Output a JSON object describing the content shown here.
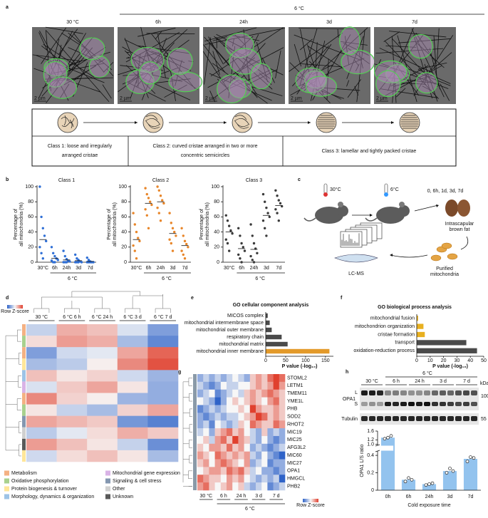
{
  "panel_labels": [
    "a",
    "b",
    "c",
    "d",
    "e",
    "f",
    "g",
    "h"
  ],
  "panel_a": {
    "group_label": "6 °C",
    "conditions": [
      "30 °C",
      "6h",
      "24h",
      "3d",
      "7d"
    ],
    "scale_bar": "2 µm",
    "classes": [
      [
        "Class 1: loose and irregularly",
        "arranged cristae"
      ],
      [
        "Class 2: curved cristae arranged in two or more",
        "concentric semicircles"
      ],
      [
        "Class 3: lamellar and tightly packed cristae"
      ]
    ]
  },
  "panel_c": {
    "temp_start": "30°C",
    "temp_cold": "6°C",
    "timepoints": "0, 6h, 1d, 3d, 7d",
    "tissue": [
      "Intrascapular",
      "brown fat"
    ],
    "mitochondria": [
      "Purified",
      "mitochondria"
    ],
    "method": "LC-MS"
  },
  "panel_h_blot": {
    "control_group": "30 °C",
    "cold_group": "6 °C",
    "lanes": [
      "6 h",
      "24 h",
      "3 d",
      "7 d"
    ],
    "unit": "kDa",
    "protein": "OPA1",
    "long_form": "L",
    "short_form": "S",
    "protein_mw": "100",
    "loading": "Tubulin",
    "loading_mw": "55"
  },
  "chart_data": [
    {
      "type": "strip",
      "title": "Class 1",
      "ylabel": [
        "Percentage of",
        "all mitochondria (%)"
      ],
      "color": "#2f6fd6",
      "categories": [
        "30°C",
        "6h",
        "24h",
        "3d",
        "7d"
      ],
      "group_label": "6 °C",
      "points": [
        [
          100,
          60,
          45,
          35,
          28,
          20,
          12,
          5
        ],
        [
          20,
          12,
          8,
          5,
          3,
          2,
          0,
          0
        ],
        [
          15,
          8,
          4,
          2,
          1,
          0,
          0,
          0
        ],
        [
          10,
          5,
          3,
          1,
          0,
          0,
          0,
          0
        ],
        [
          6,
          3,
          1,
          0,
          0,
          0,
          0,
          0
        ]
      ],
      "means": [
        30,
        5,
        3,
        2,
        1
      ],
      "ylim": [
        0,
        100
      ],
      "yticks": [
        0,
        20,
        40,
        60,
        80,
        100
      ]
    },
    {
      "type": "strip",
      "title": "Class 2",
      "ylabel": [
        "Percentage of",
        "all mitochondria (%)"
      ],
      "color": "#e8862a",
      "categories": [
        "30°C",
        "6h",
        "24h",
        "3d",
        "7d"
      ],
      "group_label": "6 °C",
      "points": [
        [
          65,
          50,
          40,
          32,
          28,
          22,
          15,
          5
        ],
        [
          98,
          90,
          85,
          80,
          76,
          70,
          62,
          45
        ],
        [
          100,
          95,
          88,
          82,
          78,
          72,
          65,
          55
        ],
        [
          65,
          52,
          45,
          40,
          35,
          30,
          25,
          15
        ],
        [
          45,
          35,
          28,
          24,
          20,
          15,
          10,
          5
        ]
      ],
      "means": [
        30,
        78,
        80,
        38,
        22
      ],
      "ylim": [
        0,
        100
      ],
      "yticks": [
        0,
        20,
        40,
        60,
        80,
        100
      ]
    },
    {
      "type": "strip",
      "title": "Class 3",
      "ylabel": [
        "Percentage of",
        "all mitochondria (%)"
      ],
      "color": "#3a3a3a",
      "categories": [
        "30°C",
        "6h",
        "24h",
        "3d",
        "7d"
      ],
      "group_label": "6 °C",
      "points": [
        [
          62,
          55,
          48,
          42,
          38,
          30,
          25,
          15
        ],
        [
          45,
          35,
          25,
          20,
          15,
          10,
          5,
          0
        ],
        [
          50,
          35,
          25,
          18,
          12,
          8,
          3,
          0
        ],
        [
          90,
          80,
          72,
          65,
          60,
          55,
          45,
          35
        ],
        [
          95,
          88,
          82,
          78,
          74,
          70,
          65,
          55
        ]
      ],
      "means": [
        40,
        18,
        17,
        62,
        75
      ],
      "ylim": [
        0,
        100
      ],
      "yticks": [
        0,
        20,
        40,
        60,
        80,
        100
      ]
    },
    {
      "type": "bar",
      "orientation": "horizontal",
      "title": "GO cellular component analysis",
      "xlabel": "P value (-log₁₀)",
      "categories": [
        "MICOS complex",
        "mitochondrial intermembrane space",
        "mitochondrial outer membrane",
        "respiratory chain",
        "mitochondrial matrix",
        "mitochondrial inner membrane"
      ],
      "values": [
        5,
        10,
        15,
        40,
        55,
        160
      ],
      "colors": [
        "#4a4a4a",
        "#4a4a4a",
        "#4a4a4a",
        "#4a4a4a",
        "#4a4a4a",
        "#e39a2a"
      ],
      "xlim": [
        0,
        170
      ],
      "xticks": [
        0,
        50,
        100,
        150
      ]
    },
    {
      "type": "bar",
      "orientation": "horizontal",
      "title": "GO biological process analysis",
      "xlabel": "P value (-log₁₀)",
      "categories": [
        "mitochondrial fusion",
        "mitochondrion organization",
        "cristae formation",
        "transport",
        "oxidation-reduction process"
      ],
      "values": [
        1,
        5,
        6,
        37,
        45
      ],
      "colors": [
        "#e8b020",
        "#e8b020",
        "#e8b020",
        "#4a4a4a",
        "#4a4a4a"
      ],
      "xlim": [
        0,
        50
      ],
      "xticks": [
        0,
        10,
        20,
        30,
        40,
        50
      ]
    },
    {
      "type": "heatmap",
      "rows": [
        "STOML2",
        "LETM1",
        "TMEM11",
        "YME1L",
        "PHB",
        "SOD2",
        "RHOT2",
        "MIC19",
        "MIC25",
        "AFG3L2",
        "MIC60",
        "MIC27",
        "OPA1",
        "HMGCL",
        "PHB2"
      ],
      "label_colors": [
        "#111",
        "#111",
        "#111",
        "#111",
        "#111",
        "#111",
        "#111",
        "#111",
        "#111",
        "#111",
        "#111",
        "#111",
        "#d42020",
        "#111",
        "#111"
      ],
      "groups": [
        "30 °C",
        "6 h",
        "24 h",
        "3 d",
        "7 d"
      ],
      "group_label": "6 °C",
      "scale_label": "Row Z-score",
      "zlim": [
        -2,
        2
      ],
      "colors": [
        "#2f63c8",
        "#f7f7f7",
        "#e0402e"
      ],
      "values": [
        [
          -1,
          -0.5,
          -1,
          -0.5,
          -1,
          -0.5,
          0,
          -0.5,
          -1,
          0.5,
          1,
          0.5,
          1.5,
          2,
          1.5
        ],
        [
          -0.5,
          -1,
          -1.5,
          -1,
          0,
          -0.5,
          -0.5,
          0,
          0,
          0.5,
          1,
          0.5,
          1,
          2,
          1
        ],
        [
          -1,
          -0.5,
          0,
          -1.5,
          -1,
          -0.5,
          0,
          -0.5,
          0.5,
          1,
          0.5,
          1,
          1.5,
          1,
          0.5
        ],
        [
          0,
          -0.5,
          -1,
          -2,
          -1,
          0,
          0.5,
          0,
          0.5,
          1,
          0.5,
          0,
          1,
          1.5,
          0.5
        ],
        [
          -1.5,
          -1,
          -0.5,
          -1,
          -0.5,
          0,
          0,
          0.5,
          0,
          2,
          1,
          0.5,
          0.5,
          1,
          0.5
        ],
        [
          -1,
          -1.5,
          -1,
          -0.5,
          -1,
          -0.5,
          -0.5,
          0,
          0.5,
          1,
          2,
          1.5,
          0.5,
          1,
          0.5
        ],
        [
          -1,
          -0.5,
          -1.5,
          0,
          -0.5,
          -1,
          -0.5,
          0.5,
          0,
          1.5,
          1,
          0.5,
          0.5,
          1.5,
          1
        ],
        [
          -0.5,
          0,
          -1,
          0.5,
          1,
          1.5,
          0.5,
          1,
          0,
          -0.5,
          -1,
          0.5,
          -1,
          -0.5,
          -1
        ],
        [
          0,
          0.5,
          -0.5,
          1,
          1.5,
          0.5,
          2,
          1,
          0.5,
          -0.5,
          -1,
          0,
          -1,
          -1.5,
          -1
        ],
        [
          0.5,
          0,
          1,
          1,
          0.5,
          1.5,
          0.5,
          1,
          0,
          -1,
          -0.5,
          -1,
          -1.5,
          -1,
          -0.5
        ],
        [
          1,
          0.5,
          0,
          1.5,
          1,
          0.5,
          1,
          0.5,
          1,
          -0.5,
          -1,
          0,
          -1,
          -1.5,
          -2
        ],
        [
          0.5,
          1,
          0,
          1,
          1.5,
          1,
          0.5,
          0,
          1,
          -1,
          -0.5,
          0,
          -1.5,
          -1,
          -1
        ],
        [
          0,
          0.5,
          1,
          1,
          0.5,
          1.5,
          1,
          1.5,
          0.5,
          -0.5,
          0,
          -1,
          -1,
          -1.5,
          -1
        ],
        [
          1.5,
          1,
          0.5,
          0.5,
          0,
          1,
          0.5,
          1,
          0,
          -0.5,
          -1,
          -0.5,
          -1,
          -0.5,
          -2
        ],
        [
          1,
          1.5,
          0.5,
          0,
          0.5,
          1,
          0,
          0.5,
          -0.5,
          -1,
          -0.5,
          0,
          -1.5,
          -1,
          -0.5
        ]
      ]
    },
    {
      "type": "heatmap",
      "groups": [
        "30 °C",
        "6 °C  6 h",
        "6 °C  24 h",
        "6 °C  3 d",
        "6 °C  7 d"
      ],
      "scale_label": "Row Z-score",
      "zlim": [
        -2,
        2
      ],
      "colors": [
        "#2f63c8",
        "#f7f7f7",
        "#e0402e"
      ],
      "row_colors": [
        "#f4b183",
        "#a9d18e",
        "#f4b183",
        "#ffe699",
        "#9dc3e6",
        "#d9b3e6",
        "#f4b183",
        "#a9d18e",
        "#8497b0",
        "#d0d0d0",
        "#595959",
        "#ffe699"
      ],
      "values": [
        [
          -0.5,
          0.8,
          0.6,
          -0.3,
          -1.2
        ],
        [
          0.3,
          1.0,
          0.8,
          -0.8,
          -1.5
        ],
        [
          -1.2,
          -0.4,
          -0.2,
          0.9,
          1.6
        ],
        [
          -0.8,
          -0.6,
          0.1,
          1.2,
          1.8
        ],
        [
          0.6,
          0.2,
          0.4,
          -0.4,
          -0.9
        ],
        [
          -0.3,
          0.5,
          0.9,
          0.2,
          -1.0
        ],
        [
          1.2,
          0.4,
          0.1,
          -0.9,
          -1.0
        ],
        [
          0.2,
          -0.5,
          -0.8,
          0.4,
          0.9
        ],
        [
          0.9,
          0.7,
          0.5,
          -1.3,
          -1.6
        ],
        [
          -0.6,
          -0.2,
          0.3,
          0.8,
          0.5
        ],
        [
          1.0,
          0.6,
          0.2,
          -0.5,
          -1.4
        ],
        [
          -0.4,
          0.3,
          0.6,
          0.2,
          -0.8
        ]
      ],
      "legend": [
        {
          "name": "Metabolism",
          "color": "#f4b183"
        },
        {
          "name": "Oxidative phosphorylation",
          "color": "#a9d18e"
        },
        {
          "name": "Protein biogenesis & turnover",
          "color": "#ffe699"
        },
        {
          "name": "Morphology, dynamics & organization",
          "color": "#9dc3e6"
        },
        {
          "name": "Mitochondrial gene expression",
          "color": "#d9b3e6"
        },
        {
          "name": "Signaling & cell stress",
          "color": "#8497b0"
        },
        {
          "name": "Other",
          "color": "#d0d0d0"
        },
        {
          "name": "Unknown",
          "color": "#595959"
        }
      ]
    },
    {
      "type": "bar",
      "orientation": "vertical",
      "ylabel": "OPA1 L/S ratio",
      "xlabel": "Cold exposure time",
      "color": "#93c3ee",
      "categories": [
        "0h",
        "6h",
        "24h",
        "3d",
        "7d"
      ],
      "values": [
        1.3,
        0.12,
        0.07,
        0.22,
        0.36
      ],
      "points": [
        [
          1.25,
          1.3,
          1.38
        ],
        [
          0.1,
          0.14,
          0.12
        ],
        [
          0.06,
          0.07,
          0.08
        ],
        [
          0.2,
          0.25,
          0.22
        ],
        [
          0.33,
          0.38,
          0.37
        ]
      ],
      "ylim_segments": [
        [
          0,
          0.45
        ],
        [
          0.95,
          1.6
        ]
      ],
      "yticks": [
        0,
        0.2,
        0.4,
        {
          "value": 1,
          "label": "1.0"
        },
        1.2,
        1.6
      ]
    }
  ]
}
